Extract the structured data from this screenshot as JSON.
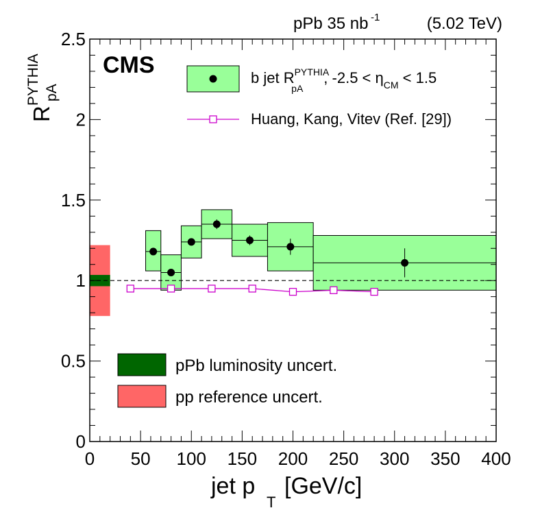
{
  "chart_data": {
    "type": "scatter",
    "header": {
      "system": "pPb 35 nb",
      "lumi_exp": "-1",
      "energy": "(5.02 TeV)"
    },
    "experiment": "CMS",
    "ylabel": {
      "main": "R",
      "sup": "PYTHIA",
      "sub": "pA"
    },
    "xlabel": {
      "main": "jet p",
      "sub": "T",
      "units": "[GeV/c]"
    },
    "xlim": [
      0,
      400
    ],
    "ylim": [
      0,
      2.5
    ],
    "x_ticks": [
      0,
      50,
      100,
      150,
      200,
      250,
      300,
      350,
      400
    ],
    "x_tick_labels": [
      "0",
      "50",
      "100",
      "150",
      "200",
      "250",
      "300",
      "350",
      "400"
    ],
    "y_ticks": [
      0,
      0.5,
      1,
      1.5,
      2,
      2.5
    ],
    "y_tick_labels": [
      "0",
      "0.5",
      "1",
      "1.5",
      "2",
      "2.5"
    ],
    "reference_line": 1,
    "series": [
      {
        "name": "b jet R pA PYTHIA",
        "legend": {
          "pre": "b jet R",
          "sup": "PYTHIA",
          "sub": "pA",
          "post1": ", -2.5 < η",
          "sub2": "CM",
          "post2": " < 1.5"
        },
        "marker": "filled-circle",
        "marker_color": "#000000",
        "box_color": "#99ff99",
        "points": [
          {
            "x": 62.5,
            "y": 1.18,
            "xlow": 55,
            "xhigh": 70,
            "stat_low": 1.16,
            "stat_high": 1.2,
            "sys_low": 1.06,
            "sys_high": 1.31
          },
          {
            "x": 80,
            "y": 1.05,
            "xlow": 70,
            "xhigh": 90,
            "stat_low": 1.03,
            "stat_high": 1.07,
            "sys_low": 0.94,
            "sys_high": 1.16
          },
          {
            "x": 100,
            "y": 1.24,
            "xlow": 90,
            "xhigh": 110,
            "stat_low": 1.22,
            "stat_high": 1.26,
            "sys_low": 1.14,
            "sys_high": 1.34
          },
          {
            "x": 125,
            "y": 1.35,
            "xlow": 110,
            "xhigh": 140,
            "stat_low": 1.32,
            "stat_high": 1.38,
            "sys_low": 1.26,
            "sys_high": 1.44
          },
          {
            "x": 157.5,
            "y": 1.25,
            "xlow": 140,
            "xhigh": 175,
            "stat_low": 1.22,
            "stat_high": 1.28,
            "sys_low": 1.15,
            "sys_high": 1.35
          },
          {
            "x": 197.5,
            "y": 1.21,
            "xlow": 175,
            "xhigh": 220,
            "stat_low": 1.16,
            "stat_high": 1.26,
            "sys_low": 1.06,
            "sys_high": 1.36
          },
          {
            "x": 310,
            "y": 1.11,
            "xlow": 220,
            "xhigh": 400,
            "stat_low": 1.02,
            "stat_high": 1.2,
            "sys_low": 0.94,
            "sys_high": 1.28
          }
        ]
      },
      {
        "name": "Huang, Kang, Vitev (Ref. [29])",
        "legend_text": "Huang, Kang, Vitev (Ref. [29])",
        "marker": "open-square",
        "color": "#cc00cc",
        "x": [
          40,
          80,
          120,
          160,
          200,
          240,
          280
        ],
        "y": [
          0.95,
          0.95,
          0.95,
          0.95,
          0.93,
          0.94,
          0.93
        ]
      }
    ],
    "uncertainty_bands": [
      {
        "name": "pPb luminosity uncert.",
        "legend_text": "pPb luminosity uncert.",
        "color": "#006600",
        "x_range": [
          0,
          20
        ],
        "y_range": [
          0.965,
          1.035
        ]
      },
      {
        "name": "pp reference uncert.",
        "legend_text": "pp reference uncert.",
        "color": "#ff6666",
        "x_range": [
          0,
          20
        ],
        "y_range": [
          0.78,
          1.22
        ]
      }
    ]
  }
}
